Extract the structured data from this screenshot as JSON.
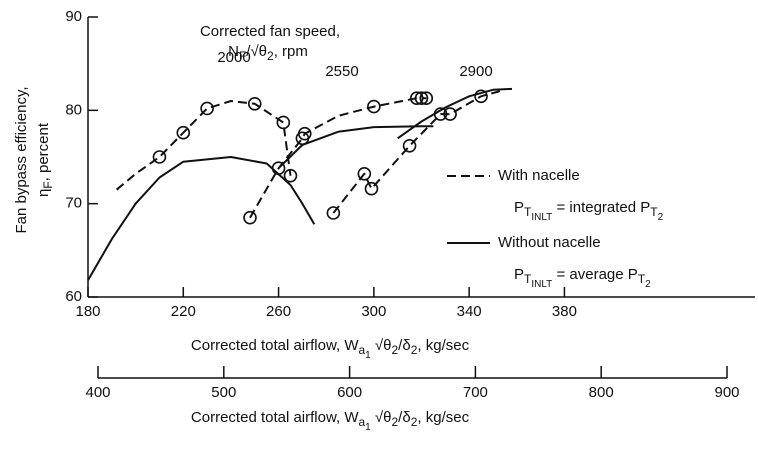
{
  "chart_data": {
    "type": "line",
    "annotation": {
      "line1": "Corrected fan speed,",
      "line2": [
        {
          "text": "N"
        },
        {
          "sub": "F"
        },
        {
          "text": "/√θ"
        },
        {
          "sub": "2"
        },
        {
          "text": ", rpm"
        }
      ]
    },
    "ylabel": {
      "line1": "Fan bypass efficiency,",
      "line2": [
        {
          "text": "η"
        },
        {
          "sub": "F"
        },
        {
          "text": ", percent"
        }
      ]
    },
    "xlabel": [
      {
        "text": "Corrected total airflow, W"
      },
      {
        "sub": "a"
      },
      {
        "subsub": "1"
      },
      {
        "text": " √θ"
      },
      {
        "sub": "2"
      },
      {
        "text": "/δ"
      },
      {
        "sub": "2"
      },
      {
        "text": ", kg/sec"
      }
    ],
    "x2label": [
      {
        "text": "Corrected total airflow, W"
      },
      {
        "sub": "a"
      },
      {
        "subsub": "1"
      },
      {
        "text": " √θ"
      },
      {
        "sub": "2"
      },
      {
        "text": "/δ"
      },
      {
        "sub": "2"
      },
      {
        "text": ", kg/sec"
      }
    ],
    "xlim": [
      180,
      460
    ],
    "xticks": [
      180,
      220,
      260,
      300,
      340,
      380
    ],
    "ylim": [
      60,
      90
    ],
    "yticks": [
      60,
      70,
      80,
      90
    ],
    "x2lim": [
      400,
      900
    ],
    "x2ticks": [
      400,
      500,
      600,
      700,
      800,
      900
    ],
    "color": "#111111",
    "series": [
      {
        "label": "2000",
        "style": "dashed",
        "x": [
          192,
          200,
          210,
          220,
          230,
          240,
          250,
          262,
          265
        ],
        "values": [
          71.5,
          73.2,
          75,
          77.6,
          80.2,
          81,
          80.7,
          78.7,
          73
        ]
      },
      {
        "label": "2550",
        "style": "dashed",
        "x": [
          248,
          260,
          270,
          271,
          285,
          300,
          318,
          320,
          322
        ],
        "values": [
          68.5,
          73.8,
          77,
          77.5,
          79.4,
          80.4,
          81.3,
          81.3,
          81.3
        ]
      },
      {
        "label": "2900",
        "style": "dashed",
        "x": [
          283,
          296,
          299,
          315,
          328,
          332,
          345,
          355
        ],
        "values": [
          69,
          73.2,
          71.6,
          76.2,
          79.6,
          79.6,
          81.5,
          82.2
        ]
      },
      {
        "style": "solid",
        "x": [
          180,
          190,
          200,
          210,
          220,
          240,
          255,
          265,
          270,
          275
        ],
        "values": [
          61.8,
          66.2,
          70,
          72.8,
          74.5,
          75,
          74.3,
          72,
          70,
          67.8
        ]
      },
      {
        "style": "solid",
        "x": [
          260,
          270,
          285,
          300,
          320,
          325
        ],
        "values": [
          73.8,
          76.3,
          77.7,
          78.2,
          78.3,
          78.3
        ]
      },
      {
        "style": "solid",
        "x": [
          310,
          320,
          330,
          340,
          350,
          358
        ],
        "values": [
          77,
          78.8,
          80.3,
          81.5,
          82.2,
          82.3
        ]
      },
      {
        "style": "circles",
        "x": [
          210,
          220,
          230,
          250,
          262,
          265,
          248,
          260,
          270,
          271,
          300,
          318,
          320,
          322,
          283,
          296,
          299,
          315,
          328,
          332,
          345
        ],
        "values": [
          75,
          77.6,
          80.2,
          80.7,
          78.7,
          73,
          68.5,
          73.8,
          77,
          77.5,
          80.4,
          81.3,
          81.3,
          81.3,
          69,
          73.2,
          71.6,
          76.2,
          79.6,
          79.6,
          81.5
        ]
      }
    ],
    "legend": [
      {
        "name": "With nacelle",
        "style": "dashed",
        "formula": [
          {
            "text": "P"
          },
          {
            "sub": "T"
          },
          {
            "subsub": "INLT"
          },
          {
            "text": " = integrated P"
          },
          {
            "sub": "T"
          },
          {
            "subsub": "2"
          }
        ]
      },
      {
        "name": "Without nacelle",
        "style": "solid",
        "formula": [
          {
            "text": "P"
          },
          {
            "sub": "T"
          },
          {
            "subsub": "INLT"
          },
          {
            "text": " = average P"
          },
          {
            "sub": "T"
          },
          {
            "subsub": "2"
          }
        ]
      }
    ]
  }
}
